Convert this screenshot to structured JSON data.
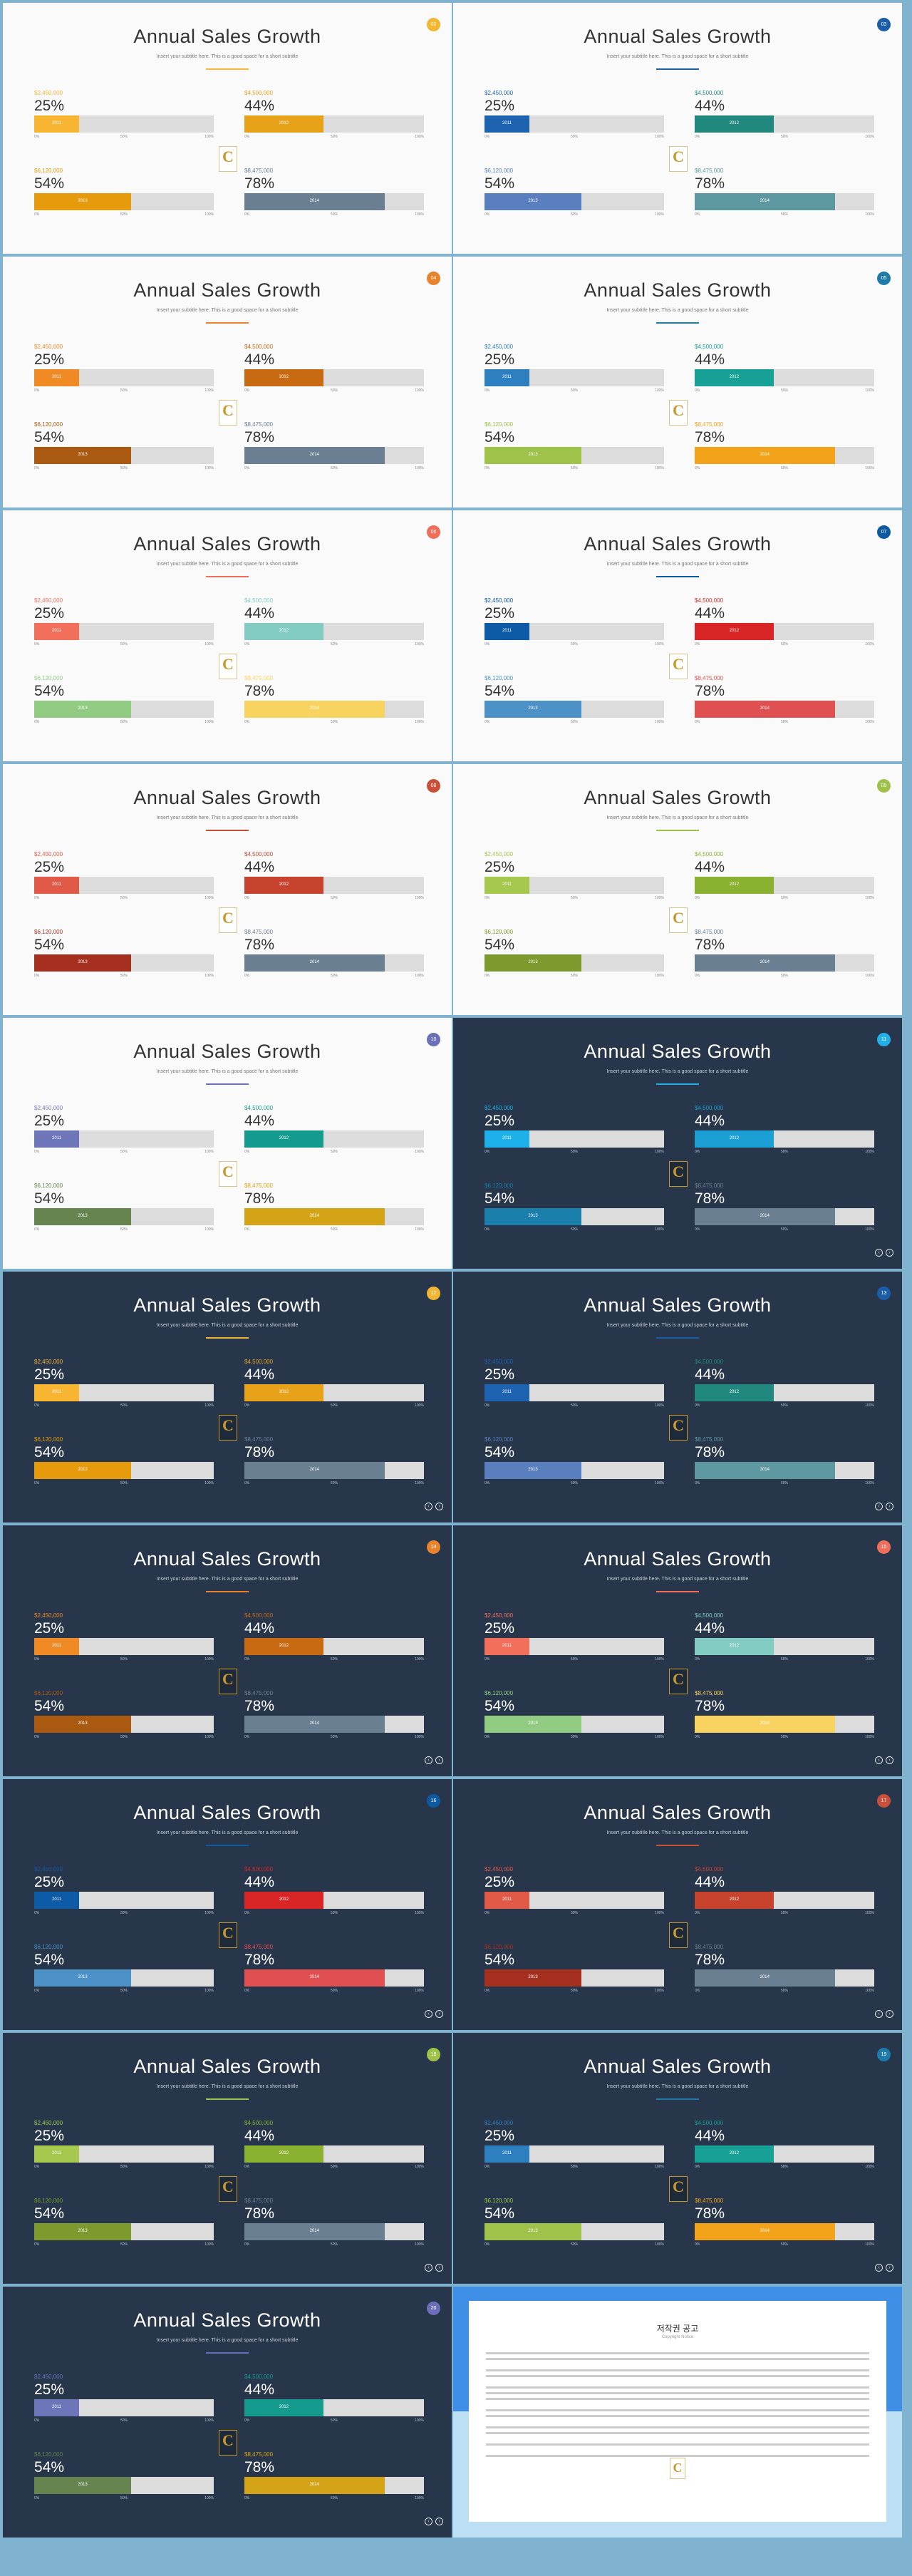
{
  "slide_text": {
    "title": "Annual Sales Growth",
    "subtitle": "Insert your subtitle here. This is a good space for a short subtitle",
    "axis": [
      "0%",
      "50%",
      "100%"
    ],
    "logo_letter": "C"
  },
  "metrics": [
    {
      "amount": "$2,450,000",
      "value": 25,
      "label": "2011"
    },
    {
      "amount": "$4,500,000",
      "value": 44,
      "label": "2012"
    },
    {
      "amount": "$6,120,000",
      "value": 54,
      "label": "2013"
    },
    {
      "amount": "$8,475,000",
      "value": 78,
      "label": "2014"
    }
  ],
  "slides": [
    {
      "theme": "light",
      "accent": "#f2b632",
      "colors": [
        "#f7b532",
        "#e8a21a",
        "#e59b0b",
        "#6b7f93"
      ],
      "badge": "02"
    },
    {
      "theme": "light",
      "accent": "#1a5ea8",
      "colors": [
        "#1e63b0",
        "#21887f",
        "#5a7fbf",
        "#5d97a0"
      ],
      "badge": "03"
    },
    {
      "theme": "light",
      "accent": "#e8832c",
      "colors": [
        "#f08a24",
        "#c86a12",
        "#a95a10",
        "#6b7f93"
      ],
      "badge": "04"
    },
    {
      "theme": "light",
      "accent": "#1e7aa8",
      "colors": [
        "#2e7fc0",
        "#16a096",
        "#9fc24a",
        "#f3a31a"
      ],
      "badge": "05"
    },
    {
      "theme": "light",
      "accent": "#f06f5a",
      "colors": [
        "#f26f5c",
        "#82ccc3",
        "#92cc83",
        "#f9d35f"
      ],
      "badge": "06"
    },
    {
      "theme": "light",
      "accent": "#0d5aa0",
      "colors": [
        "#0d5aa6",
        "#d92525",
        "#4c92c7",
        "#e05050"
      ],
      "badge": "07"
    },
    {
      "theme": "light",
      "accent": "#c8503a",
      "colors": [
        "#e05a47",
        "#c8432d",
        "#a5301f",
        "#6b7f93"
      ],
      "badge": "08"
    },
    {
      "theme": "light",
      "accent": "#9ec24a",
      "colors": [
        "#a6c84e",
        "#8bb130",
        "#7c9a2e",
        "#6b7f93"
      ],
      "badge": "09"
    },
    {
      "theme": "light",
      "accent": "#6a6fb8",
      "colors": [
        "#6f75b9",
        "#159b8e",
        "#65844f",
        "#d5a416"
      ],
      "badge": "10"
    },
    {
      "theme": "dark",
      "accent": "#22b0e8",
      "colors": [
        "#1eb0e8",
        "#1c9fd5",
        "#1a7faa",
        "#6b7f93"
      ],
      "badge": "11"
    },
    {
      "theme": "dark",
      "accent": "#f2b632",
      "colors": [
        "#f7b532",
        "#e8a21a",
        "#e59b0b",
        "#6b7f93"
      ],
      "badge": "12"
    },
    {
      "theme": "dark",
      "accent": "#1a5ea8",
      "colors": [
        "#1e63b0",
        "#21887f",
        "#5a7fbf",
        "#5d97a0"
      ],
      "badge": "13"
    },
    {
      "theme": "dark",
      "accent": "#e8832c",
      "colors": [
        "#f08a24",
        "#c86a12",
        "#a95a10",
        "#6b7f93"
      ],
      "badge": "14"
    },
    {
      "theme": "dark",
      "accent": "#f06f5a",
      "colors": [
        "#f26f5c",
        "#82ccc3",
        "#92cc83",
        "#f9d35f"
      ],
      "badge": "15"
    },
    {
      "theme": "dark",
      "accent": "#0d5aa0",
      "colors": [
        "#0d5aa6",
        "#d92525",
        "#4c92c7",
        "#e05050"
      ],
      "badge": "16"
    },
    {
      "theme": "dark",
      "accent": "#c8503a",
      "colors": [
        "#e05a47",
        "#c8432d",
        "#a5301f",
        "#6b7f93"
      ],
      "badge": "17"
    },
    {
      "theme": "dark",
      "accent": "#9ec24a",
      "colors": [
        "#a6c84e",
        "#8bb130",
        "#7c9a2e",
        "#6b7f93"
      ],
      "badge": "18"
    },
    {
      "theme": "dark",
      "accent": "#1e7aa8",
      "colors": [
        "#2e7fc0",
        "#16a096",
        "#9fc24a",
        "#f3a31a"
      ],
      "badge": "19"
    },
    {
      "theme": "dark",
      "accent": "#6a6fb8",
      "colors": [
        "#6f75b9",
        "#159b8e",
        "#65844f",
        "#d5a416"
      ],
      "badge": "20"
    }
  ],
  "copyright": {
    "title": "저작권 공고",
    "subtitle": "Copyright Notice",
    "band_color": "#3f8fe6"
  }
}
